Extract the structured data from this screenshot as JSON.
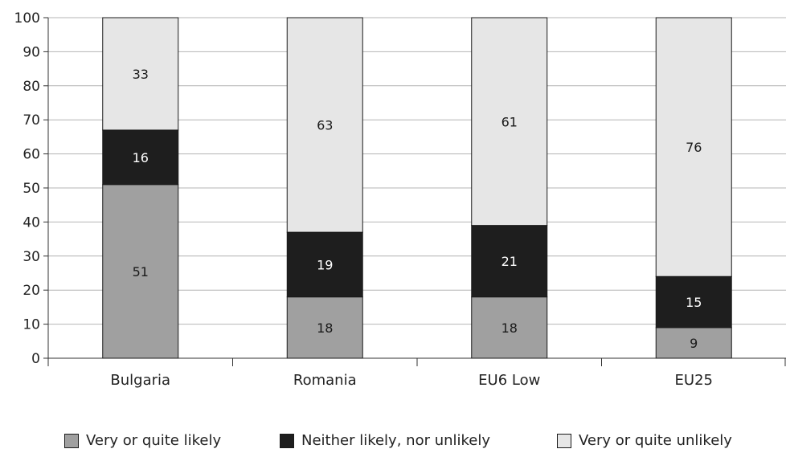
{
  "chart_data": {
    "type": "bar",
    "stacked": true,
    "categories": [
      "Bulgaria",
      "Romania",
      "EU6 Low",
      "EU25"
    ],
    "series": [
      {
        "name": "Very or quite likely",
        "values": [
          51,
          18,
          18,
          9
        ],
        "color": "#a0a0a0"
      },
      {
        "name": "Neither likely, nor unlikely",
        "values": [
          16,
          19,
          21,
          15
        ],
        "color": "#1e1e1e"
      },
      {
        "name": "Very or quite unlikely",
        "values": [
          33,
          63,
          61,
          76
        ],
        "color": "#e6e6e6"
      }
    ],
    "ylim": [
      0,
      100
    ],
    "yticks": [
      0,
      10,
      20,
      30,
      40,
      50,
      60,
      70,
      80,
      90,
      100
    ],
    "grid": true,
    "legend_position": "bottom",
    "title": "",
    "xlabel": "",
    "ylabel": ""
  }
}
